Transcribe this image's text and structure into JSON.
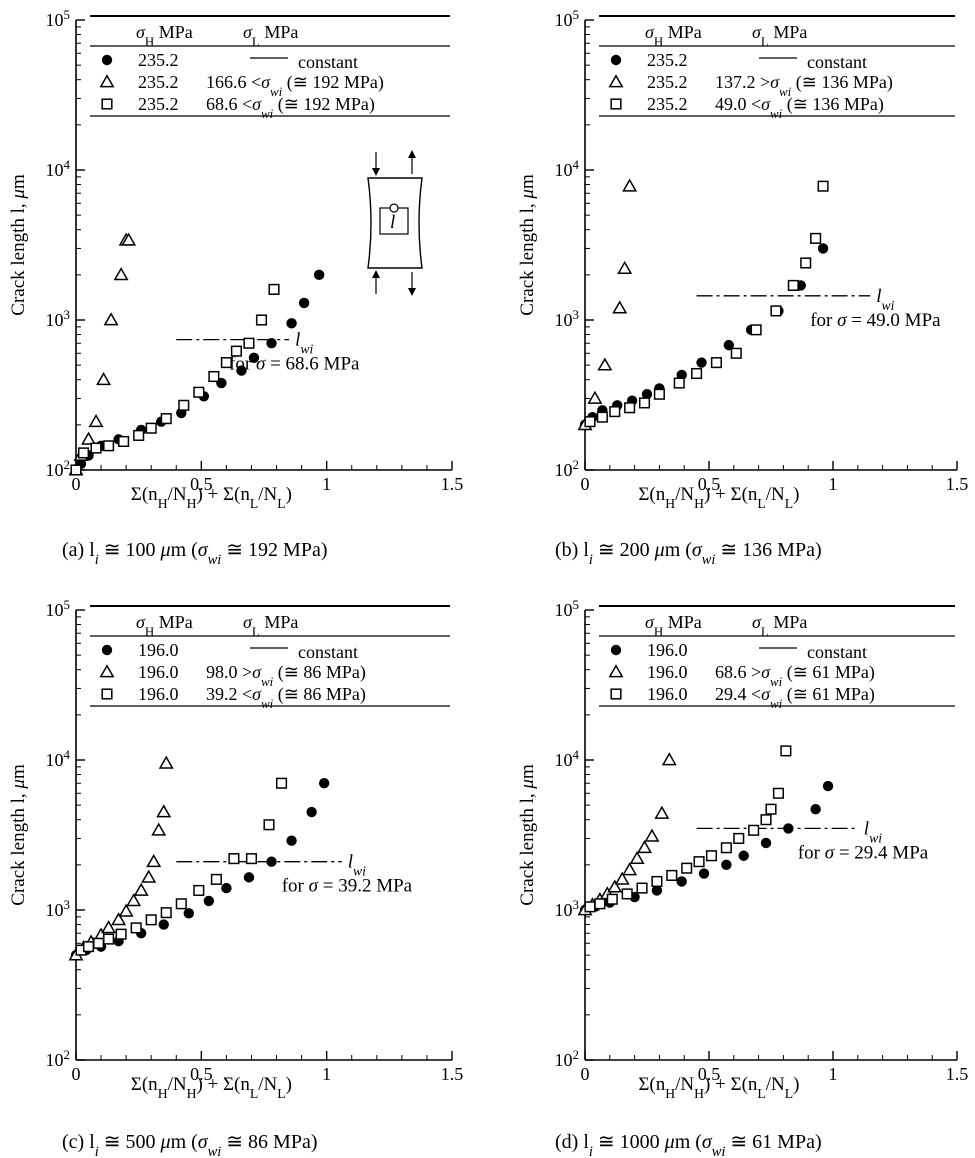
{
  "chart_data": [
    {
      "type": "scatter",
      "caption": "(a) l_i ≅ 100 μm (σ_wi ≅ 192 MPa)",
      "xlabel": "Σ(n_H/N_H) + Σ(n_L/N_L)",
      "ylabel": "Crack length l, μm",
      "x_ticks": [
        "0",
        "0.5",
        "1",
        "1.5"
      ],
      "y_ticks": [
        "10^2",
        "10^3",
        "10^4",
        "10^5"
      ],
      "xlim": [
        0,
        1.5
      ],
      "ylim": [
        100,
        100000
      ],
      "yscale": "log",
      "grid": false,
      "legend_header": [
        "σ_H MPa",
        "σ_L MPa"
      ],
      "legend_position": "top",
      "series": [
        {
          "marker": "filled-circle",
          "sigma_H": "235.2",
          "sigma_L": "constant",
          "x": [
            0,
            0.02,
            0.05,
            0.1,
            0.17,
            0.26,
            0.34,
            0.42,
            0.51,
            0.58,
            0.66,
            0.71,
            0.78,
            0.86,
            0.91,
            0.97
          ],
          "y": [
            100,
            110,
            125,
            145,
            160,
            185,
            210,
            240,
            310,
            380,
            460,
            560,
            700,
            950,
            1300,
            2000
          ]
        },
        {
          "marker": "open-triangle",
          "sigma_H": "235.2",
          "sigma_L": "166.6 <σ_wi (≅ 192 MPa)",
          "x": [
            0,
            0.02,
            0.05,
            0.08,
            0.11,
            0.14,
            0.18,
            0.2,
            0.21
          ],
          "y": [
            100,
            125,
            160,
            210,
            400,
            1000,
            2000,
            3400,
            3400
          ]
        },
        {
          "marker": "open-square",
          "sigma_H": "235.2",
          "sigma_L": "68.6 <σ_wi (≅ 192 MPa)",
          "x": [
            0,
            0.03,
            0.08,
            0.13,
            0.19,
            0.25,
            0.3,
            0.36,
            0.43,
            0.49,
            0.55,
            0.6,
            0.64,
            0.69,
            0.74,
            0.79
          ],
          "y": [
            100,
            130,
            140,
            145,
            155,
            170,
            190,
            220,
            270,
            330,
            420,
            520,
            620,
            700,
            1000,
            1600
          ]
        }
      ],
      "wi_line": {
        "y": 740,
        "x": [
          0.4,
          0.85
        ],
        "label": "l_wi",
        "note": "for σ = 68.6 MPa"
      }
    },
    {
      "type": "scatter",
      "caption": "(b) l_i ≅ 200 μm (σ_wi ≅ 136 MPa)",
      "xlabel": "Σ(n_H/N_H) + Σ(n_L/N_L)",
      "ylabel": "Crack length l, μm",
      "x_ticks": [
        "0",
        "0.5",
        "1",
        "1.5"
      ],
      "y_ticks": [
        "10^2",
        "10^3",
        "10^4",
        "10^5"
      ],
      "xlim": [
        0,
        1.5
      ],
      "ylim": [
        100,
        100000
      ],
      "yscale": "log",
      "grid": false,
      "legend_header": [
        "σ_H MPa",
        "σ_L MPa"
      ],
      "legend_position": "top",
      "series": [
        {
          "marker": "filled-circle",
          "sigma_H": "235.2",
          "sigma_L": "constant",
          "x": [
            0,
            0.03,
            0.07,
            0.13,
            0.19,
            0.25,
            0.3,
            0.39,
            0.47,
            0.58,
            0.67,
            0.78,
            0.87,
            0.96
          ],
          "y": [
            200,
            225,
            250,
            270,
            290,
            320,
            350,
            430,
            520,
            680,
            860,
            1150,
            1700,
            3000
          ]
        },
        {
          "marker": "open-triangle",
          "sigma_H": "235.2",
          "sigma_L": "137.2 >σ_wi (≅ 136 MPa)",
          "x": [
            0,
            0.04,
            0.08,
            0.14,
            0.16,
            0.18
          ],
          "y": [
            200,
            300,
            500,
            1200,
            2200,
            7800
          ]
        },
        {
          "marker": "open-square",
          "sigma_H": "235.2",
          "sigma_L": "49.0 <σ_wi (≅ 136 MPa)",
          "x": [
            0.02,
            0.07,
            0.12,
            0.18,
            0.24,
            0.3,
            0.38,
            0.45,
            0.53,
            0.61,
            0.69,
            0.77,
            0.84,
            0.89,
            0.93,
            0.96
          ],
          "y": [
            210,
            225,
            245,
            260,
            280,
            320,
            380,
            440,
            520,
            600,
            860,
            1150,
            1700,
            2400,
            3500,
            7800
          ]
        }
      ],
      "wi_line": {
        "y": 1450,
        "x": [
          0.45,
          1.15
        ],
        "label": "l_wi",
        "note": "for σ = 49.0 MPa"
      }
    },
    {
      "type": "scatter",
      "caption": "(c) l_i ≅ 500 μm (σ_wi ≅ 86 MPa)",
      "xlabel": "Σ(n_H/N_H) + Σ(n_L/N_L)",
      "ylabel": "Crack length l, μm",
      "x_ticks": [
        "0",
        "0.5",
        "1",
        "1.5"
      ],
      "y_ticks": [
        "10^2",
        "10^3",
        "10^4",
        "10^5"
      ],
      "xlim": [
        0,
        1.5
      ],
      "ylim": [
        100,
        100000
      ],
      "yscale": "log",
      "grid": false,
      "legend_header": [
        "σ_H MPa",
        "σ_L MPa"
      ],
      "legend_position": "top",
      "series": [
        {
          "marker": "filled-circle",
          "sigma_H": "196.0",
          "sigma_L": "constant",
          "x": [
            0,
            0.04,
            0.1,
            0.17,
            0.26,
            0.35,
            0.45,
            0.53,
            0.6,
            0.69,
            0.78,
            0.86,
            0.94,
            0.99
          ],
          "y": [
            500,
            540,
            570,
            620,
            700,
            800,
            950,
            1150,
            1400,
            1650,
            2100,
            2900,
            4500,
            7000
          ]
        },
        {
          "marker": "open-triangle",
          "sigma_H": "196.0",
          "sigma_L": "98.0 >σ_wi (≅ 86 MPa)",
          "x": [
            0,
            0.03,
            0.06,
            0.1,
            0.13,
            0.17,
            0.2,
            0.23,
            0.26,
            0.29,
            0.31,
            0.33,
            0.35,
            0.36
          ],
          "y": [
            500,
            560,
            610,
            680,
            760,
            860,
            980,
            1150,
            1350,
            1650,
            2100,
            3400,
            4500,
            9500
          ]
        },
        {
          "marker": "open-square",
          "sigma_H": "196.0",
          "sigma_L": "39.2 <σ_wi (≅ 86 MPa)",
          "x": [
            0.02,
            0.05,
            0.09,
            0.13,
            0.18,
            0.24,
            0.3,
            0.36,
            0.42,
            0.49,
            0.56,
            0.63,
            0.7,
            0.77,
            0.82
          ],
          "y": [
            540,
            570,
            600,
            640,
            690,
            760,
            860,
            960,
            1100,
            1350,
            1600,
            2200,
            2200,
            3700,
            7000
          ]
        }
      ],
      "wi_line": {
        "y": 2100,
        "x": [
          0.4,
          1.06
        ],
        "label": "l_wi",
        "note": "for σ = 39.2 MPa"
      }
    },
    {
      "type": "scatter",
      "caption": "(d) l_i ≅ 1000 μm (σ_wi ≅ 61 MPa)",
      "xlabel": "Σ(n_H/N_H) + Σ(n_L/N_L)",
      "ylabel": "Crack length l, μm",
      "x_ticks": [
        "0",
        "0.5",
        "1",
        "1.5"
      ],
      "y_ticks": [
        "10^2",
        "10^3",
        "10^4",
        "10^5"
      ],
      "xlim": [
        0,
        1.5
      ],
      "ylim": [
        100,
        100000
      ],
      "yscale": "log",
      "grid": false,
      "legend_header": [
        "σ_H MPa",
        "σ_L MPa"
      ],
      "legend_position": "top",
      "series": [
        {
          "marker": "filled-circle",
          "sigma_H": "196.0",
          "sigma_L": "constant",
          "x": [
            0,
            0.04,
            0.1,
            0.2,
            0.29,
            0.39,
            0.48,
            0.57,
            0.64,
            0.73,
            0.82,
            0.93,
            0.98
          ],
          "y": [
            1000,
            1050,
            1120,
            1220,
            1350,
            1550,
            1750,
            2000,
            2300,
            2800,
            3500,
            4700,
            6700
          ]
        },
        {
          "marker": "open-triangle",
          "sigma_H": "196.0",
          "sigma_L": "68.6 >σ_wi (≅ 61 MPa)",
          "x": [
            0,
            0.03,
            0.06,
            0.09,
            0.12,
            0.15,
            0.18,
            0.21,
            0.24,
            0.27,
            0.31,
            0.34
          ],
          "y": [
            1000,
            1080,
            1170,
            1280,
            1420,
            1600,
            1850,
            2200,
            2600,
            3100,
            4400,
            10000
          ]
        },
        {
          "marker": "open-square",
          "sigma_H": "196.0",
          "sigma_L": "29.4 <σ_wi (≅ 61 MPa)",
          "x": [
            0.02,
            0.06,
            0.11,
            0.17,
            0.23,
            0.29,
            0.35,
            0.41,
            0.46,
            0.51,
            0.57,
            0.62,
            0.68,
            0.73,
            0.75,
            0.78,
            0.81
          ],
          "y": [
            1050,
            1100,
            1180,
            1280,
            1400,
            1550,
            1700,
            1900,
            2100,
            2300,
            2600,
            3000,
            3400,
            4000,
            4700,
            6000,
            11500
          ]
        }
      ],
      "wi_line": {
        "y": 3500,
        "x": [
          0.45,
          1.1
        ],
        "label": "l_wi",
        "note": "for σ = 29.4 MPa"
      }
    }
  ]
}
